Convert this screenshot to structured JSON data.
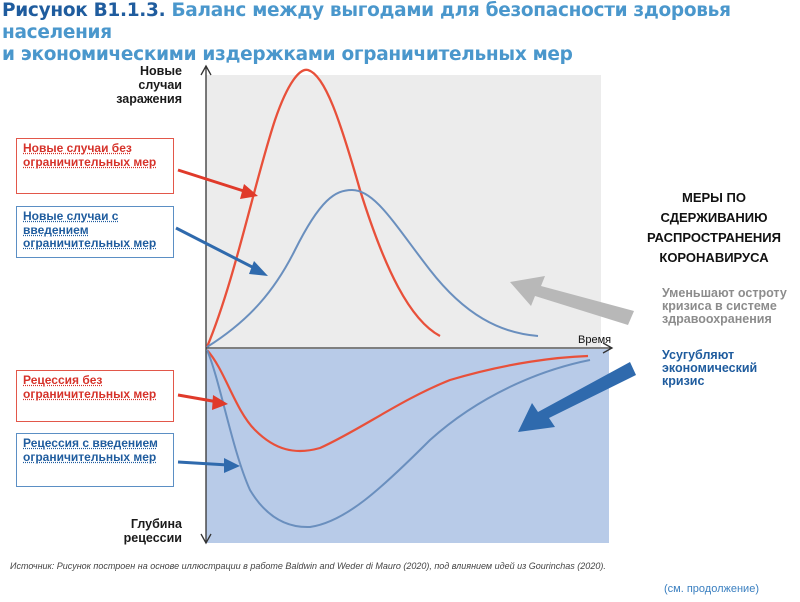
{
  "title": {
    "number": "Рисунок В1.1.3.",
    "text": " Баланс между выгодами для безопасности здоровья населения",
    "line2": "и экономическими издержками ограничительных мер"
  },
  "axes": {
    "y_top_label": "Новые случаи заражения",
    "y_bottom_label": "Глубина рецессии",
    "x_label": "Время"
  },
  "boxes": {
    "red_top": "Новые случаи без ограничительных мер",
    "blue_top": "Новые случаи с введением ограничительных мер",
    "red_bottom": "Рецессия без ограничительных мер",
    "blue_bottom": "Рецессия с введением ограничительных мер"
  },
  "measures": {
    "heading_lines": [
      "МЕРЫ ПО",
      "СДЕРЖИВАНИЮ",
      "РАСПРОСТРАНЕНИЯ",
      "КОРОНАВИРУСА"
    ],
    "gray_text": "Уменьшают остроту кризиса в системе здравоохранения",
    "blue_text": "Усугубляют экономический кризис"
  },
  "source": "Источник: Рисунок построен на основе иллюстрации в работе Baldwin and Weder di Mauro (2020), под влиянием идей  из Gourinchas (2020).",
  "continued": "(см. продолжение)",
  "colors": {
    "red": "#e8503a",
    "blue": "#6a8fbe",
    "upper_panel": "#ececec",
    "lower_panel": "#b8cbe8",
    "gray_arrow": "#b8b8b8",
    "blue_arrow": "#2f6aad"
  }
}
